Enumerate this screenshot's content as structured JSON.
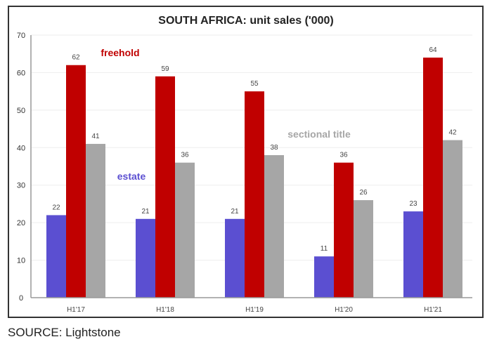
{
  "chart_data": {
    "type": "bar",
    "title": "SOUTH AFRICA: unit sales ('000)",
    "categories": [
      "H1'17",
      "H1'18",
      "H1'19",
      "H1'20",
      "H1'21"
    ],
    "series": [
      {
        "name": "estate",
        "values": [
          22,
          21,
          21,
          11,
          23
        ],
        "color": "#5b4fd1"
      },
      {
        "name": "freehold",
        "values": [
          62,
          59,
          55,
          36,
          64
        ],
        "color": "#c00000"
      },
      {
        "name": "sectional title",
        "values": [
          41,
          36,
          38,
          26,
          42
        ],
        "color": "#a6a6a6"
      }
    ],
    "ylim": [
      0,
      70
    ],
    "yticks": [
      0,
      10,
      20,
      30,
      40,
      50,
      60,
      70
    ],
    "grid": true,
    "legend": "inline labels"
  },
  "source": "SOURCE: Lightstone"
}
